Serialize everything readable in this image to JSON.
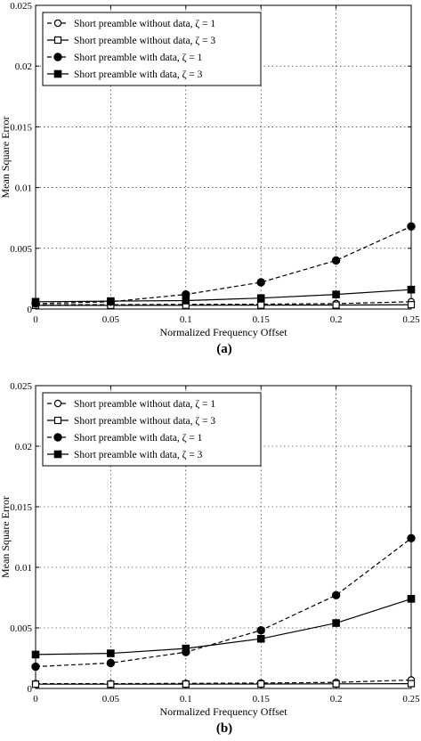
{
  "chart_data": [
    {
      "type": "line",
      "panel_label": "(a)",
      "xlabel": "Normalized Frequency Offset",
      "ylabel": "Mean Square Error",
      "xlim": [
        0,
        0.25
      ],
      "ylim": [
        0,
        0.025
      ],
      "xticks": [
        "0",
        "0.05",
        "0.1",
        "0.15",
        "0.2",
        "0.25"
      ],
      "yticks": [
        "0",
        "0.005",
        "0.01",
        "0.015",
        "0.02",
        "0.025"
      ],
      "grid": true,
      "legend_position": "top-left",
      "x": [
        0,
        0.05,
        0.1,
        0.15,
        0.2,
        0.25
      ],
      "series": [
        {
          "name": "Short preamble without data, ζ = 1",
          "values": [
            0.00035,
            0.00036,
            0.00038,
            0.0004,
            0.00045,
            0.0006
          ],
          "line": "dashed",
          "marker": "open-circle"
        },
        {
          "name": "Short preamble without data, ζ = 3",
          "values": [
            0.0003,
            0.0003,
            0.00031,
            0.00032,
            0.00033,
            0.00036
          ],
          "line": "solid",
          "marker": "open-square"
        },
        {
          "name": "Short preamble with data, ζ = 1",
          "values": [
            0.00045,
            0.0006,
            0.0012,
            0.0022,
            0.004,
            0.0068
          ],
          "line": "dashed",
          "marker": "filled-circle"
        },
        {
          "name": "Short preamble with data, ζ = 3",
          "values": [
            0.0006,
            0.00065,
            0.0007,
            0.0009,
            0.0012,
            0.0016
          ],
          "line": "solid",
          "marker": "filled-square"
        }
      ]
    },
    {
      "type": "line",
      "panel_label": "(b)",
      "xlabel": "Normalized Frequency Offset",
      "ylabel": "Mean Square Error",
      "xlim": [
        0,
        0.25
      ],
      "ylim": [
        0,
        0.025
      ],
      "xticks": [
        "0",
        "0.05",
        "0.1",
        "0.15",
        "0.2",
        "0.25"
      ],
      "yticks": [
        "0",
        "0.005",
        "0.01",
        "0.015",
        "0.02",
        "0.025"
      ],
      "grid": true,
      "legend_position": "top-left",
      "x": [
        0,
        0.05,
        0.1,
        0.15,
        0.2,
        0.25
      ],
      "series": [
        {
          "name": "Short preamble without data, ζ = 1",
          "values": [
            0.0004,
            0.0004,
            0.00042,
            0.00045,
            0.0005,
            0.0007
          ],
          "line": "dashed",
          "marker": "open-circle"
        },
        {
          "name": "Short preamble without data, ζ = 3",
          "values": [
            0.00035,
            0.00035,
            0.00036,
            0.00037,
            0.00038,
            0.0004
          ],
          "line": "solid",
          "marker": "open-square"
        },
        {
          "name": "Short preamble with data, ζ = 1",
          "values": [
            0.0018,
            0.0021,
            0.003,
            0.0048,
            0.0077,
            0.0124
          ],
          "line": "dashed",
          "marker": "filled-circle"
        },
        {
          "name": "Short preamble with data, ζ = 3",
          "values": [
            0.0028,
            0.0029,
            0.0033,
            0.0041,
            0.0054,
            0.0074
          ],
          "line": "solid",
          "marker": "filled-square"
        }
      ]
    }
  ]
}
